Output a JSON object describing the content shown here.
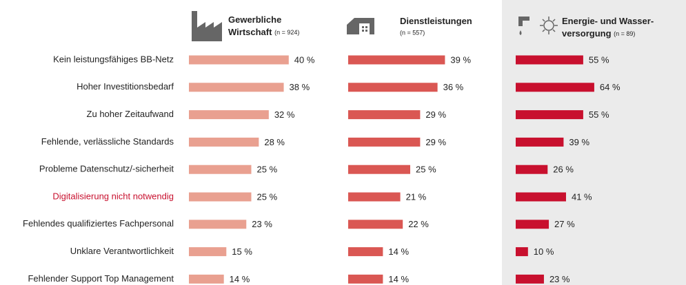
{
  "chart_data": {
    "type": "bar",
    "orientation": "horizontal",
    "categories": [
      "Kein leistungsfähiges BB-Netz",
      "Hoher Investitionsbedarf",
      "Zu hoher Zeitaufwand",
      "Fehlende, verlässliche Standards",
      "Probleme Datenschutz/-sicherheit",
      "Digitalisierung nicht notwendig",
      "Fehlendes qualifiziertes Fachpersonal",
      "Unklare Verantwortlichkeit",
      "Fehlender Support Top Management"
    ],
    "highlight": {
      "index": 5,
      "color": "#c8102e"
    },
    "series": [
      {
        "name": [
          "Gewerbliche",
          "Wirtschaft"
        ],
        "n": "(n = 924)",
        "color": "#e9a090",
        "values": [
          40,
          38,
          32,
          28,
          25,
          25,
          23,
          15,
          14
        ],
        "value_labels": [
          "40 %",
          "38 %",
          "32 %",
          "28 %",
          "25 %",
          "25 %",
          "23 %",
          "15 %",
          "14 %"
        ]
      },
      {
        "name": [
          "Dienstleistungen"
        ],
        "n": "(n = 557)",
        "color": "#da5753",
        "values": [
          39,
          36,
          29,
          29,
          25,
          21,
          22,
          14,
          14
        ],
        "value_labels": [
          "39 %",
          "36 %",
          "29 %",
          "29 %",
          "25 %",
          "21 %",
          "22 %",
          "14 %",
          "14 %"
        ]
      },
      {
        "name": [
          "Energie- und Wasser-",
          "versorgung"
        ],
        "n": "(n = 89)",
        "color": "#c8102e",
        "values": [
          55,
          64,
          55,
          39,
          26,
          41,
          27,
          10,
          23
        ],
        "value_labels": [
          "55 %",
          "64 %",
          "55 %",
          "39 %",
          "26 %",
          "41 %",
          "27 %",
          "10 %",
          "23 %"
        ]
      }
    ]
  }
}
